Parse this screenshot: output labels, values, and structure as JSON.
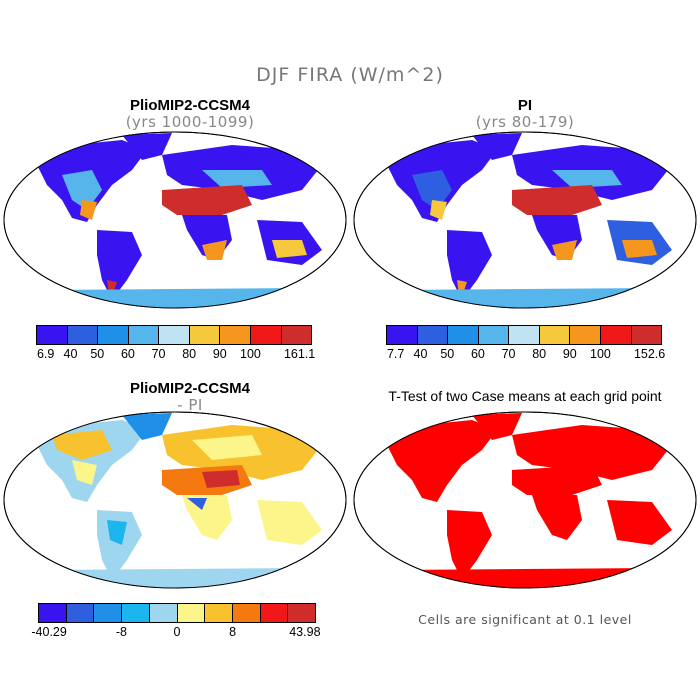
{
  "title": "DJF FIRA (W/m^2)",
  "panels": {
    "tl": {
      "title": "PlioMIP2-CCSM4",
      "subtitle": "(yrs 1000-1099)"
    },
    "tr": {
      "title": "PI",
      "subtitle": "(yrs 80-179)"
    },
    "bl": {
      "title": "PlioMIP2-CCSM4",
      "subtitle": "- PI"
    },
    "br": {
      "title": "T-Test of two Case means at each grid point"
    }
  },
  "colorbars": {
    "tl": {
      "colors": [
        "#3a14f0",
        "#2e5fe0",
        "#1f8fe8",
        "#56b6ec",
        "#bfe3f3",
        "#f6c93c",
        "#f5961e",
        "#f01818",
        "#cf2c2c"
      ],
      "labels": [
        "6.9",
        "40",
        "50",
        "60",
        "70",
        "80",
        "90",
        "100",
        "161.1"
      ]
    },
    "tr": {
      "colors": [
        "#3a14f0",
        "#2e5fe0",
        "#1f8fe8",
        "#56b6ec",
        "#bfe3f3",
        "#f6c93c",
        "#f5961e",
        "#f01818",
        "#cf2c2c"
      ],
      "labels": [
        "7.7",
        "40",
        "50",
        "60",
        "70",
        "80",
        "90",
        "100",
        "152.6"
      ]
    },
    "bl": {
      "colors": [
        "#3a14f0",
        "#2e5fe0",
        "#1f8fe8",
        "#1db5ee",
        "#9fd6ef",
        "#fbf58a",
        "#f8c12e",
        "#f47a10",
        "#f01818",
        "#cf2c2c"
      ],
      "labels": [
        "-40.29",
        "-8",
        "0",
        "8",
        "43.98"
      ]
    }
  },
  "note": "Cells are significant at 0.1 level"
}
